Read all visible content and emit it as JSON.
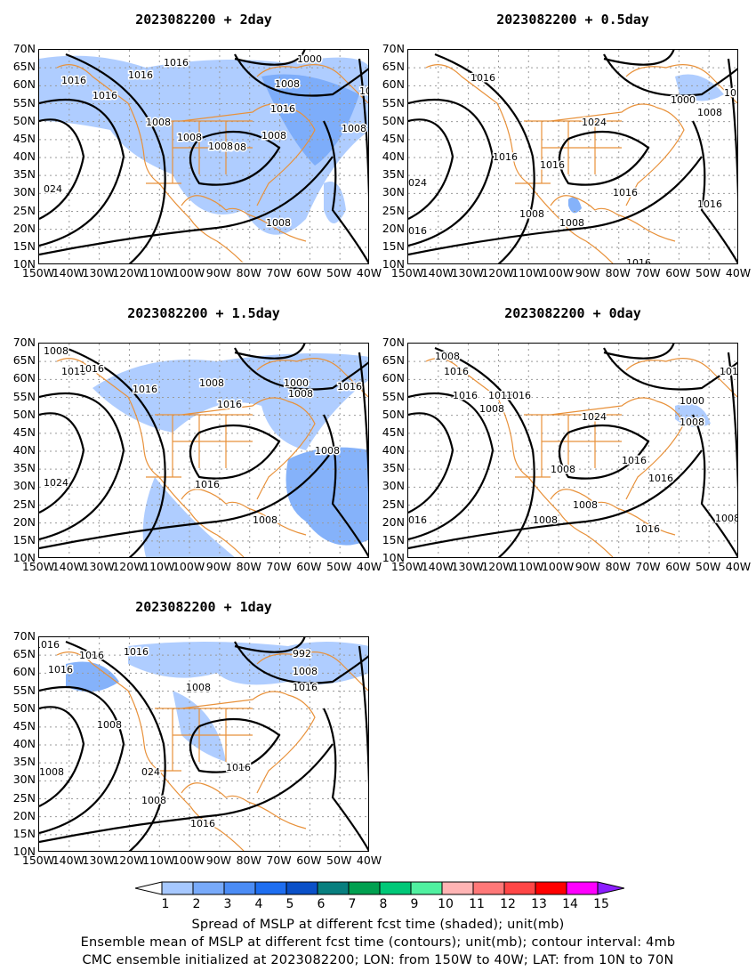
{
  "panels": [
    {
      "title": "2023082200  +  2day",
      "labels": [
        "1016",
        "1016",
        "1016",
        "1000",
        "1008",
        "1016",
        "1016",
        "1016",
        "1008",
        "1008",
        "1008",
        "1008",
        "1008",
        "1008",
        "024",
        "1008",
        "1008"
      ]
    },
    {
      "title": "2023082200  +  0.5day",
      "labels": [
        "1016",
        "1000",
        "1016",
        "1008",
        "1024",
        "1016",
        "1016",
        "1016",
        "024",
        "1008",
        "1008",
        "1016",
        "016",
        "1016"
      ]
    },
    {
      "title": "2023082200  +  1.5day",
      "labels": [
        "1008",
        "1016",
        "1016",
        "1016",
        "1008",
        "1000",
        "1008",
        "1016",
        "1016",
        "1008",
        "1024",
        "1016",
        "1008",
        "1008"
      ]
    },
    {
      "title": "2023082200  +  0day",
      "labels": [
        "1008",
        "1016",
        "1016",
        "1016",
        "1016",
        "1008",
        "1024",
        "1000",
        "1008",
        "1016",
        "1016",
        "1016",
        "1008",
        "1008",
        "1008",
        "016",
        "1016",
        "1008"
      ]
    },
    {
      "title": "2023082200  +  1day",
      "labels": [
        "1016",
        "1016",
        "1016",
        "1016",
        "1000",
        "992",
        "1008",
        "1016",
        "1008",
        "1008",
        "1016",
        "024",
        "1008",
        "1008",
        "1016"
      ]
    }
  ],
  "lat_ticks": [
    "70N",
    "65N",
    "60N",
    "55N",
    "50N",
    "45N",
    "40N",
    "35N",
    "30N",
    "25N",
    "20N",
    "15N",
    "10N"
  ],
  "lon_ticks": [
    "150W",
    "140W",
    "130W",
    "120W",
    "110W",
    "100W",
    "90W",
    "80W",
    "70W",
    "60W",
    "50W",
    "40W"
  ],
  "colorbar": {
    "levels": [
      "1",
      "2",
      "3",
      "4",
      "5",
      "6",
      "7",
      "8",
      "9",
      "10",
      "11",
      "12",
      "13",
      "14",
      "15"
    ],
    "colors": [
      "#ffffff",
      "#a6c8ff",
      "#78aafa",
      "#4b8cf5",
      "#1e6ef0",
      "#0a50c8",
      "#087f7f",
      "#00a050",
      "#00c878",
      "#50f0a0",
      "#ffb4b4",
      "#ff7878",
      "#ff4646",
      "#ff0000",
      "#ff00ff",
      "#8c1eff"
    ]
  },
  "captions": [
    "Spread of MSLP at different fcst time (shaded); unit(mb)",
    "Ensemble mean of MSLP at different fcst time (contours); unit(mb); contour interval: 4mb",
    "CMC ensemble initialized at 2023082200; LON: from 150W to 40W; LAT: from 10N to 70N"
  ],
  "colors": {
    "coast": "#e8913a",
    "contour": "#000000",
    "shade_light": "#a6c8ff",
    "shade_mid": "#78aafa",
    "shade_dark": "#4b8cf5",
    "grid": "#9a9a9a"
  }
}
